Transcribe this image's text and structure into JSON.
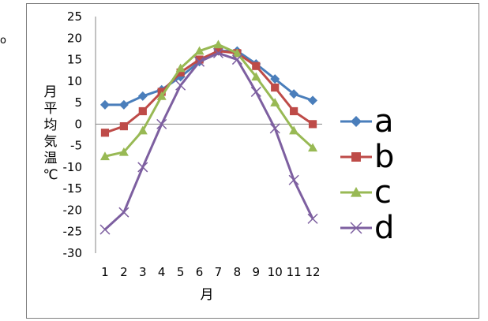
{
  "stray_text": "o",
  "chart_data": {
    "type": "line",
    "xlabel": "月",
    "ylabel": "月平均気温℃",
    "categories": [
      "1",
      "2",
      "3",
      "4",
      "5",
      "6",
      "7",
      "8",
      "9",
      "10",
      "11",
      "12"
    ],
    "ylim": [
      -30,
      25
    ],
    "y_ticks": [
      25,
      20,
      15,
      10,
      5,
      0,
      -5,
      -10,
      -15,
      -20,
      -25,
      -30
    ],
    "grid": false,
    "legend_position": "right",
    "series": [
      {
        "name": "a",
        "color": "#4a7ebb",
        "marker": "diamond",
        "values": [
          4.5,
          4.5,
          6.5,
          8,
          11,
          14.5,
          17,
          17,
          14,
          10.5,
          7,
          5.5
        ]
      },
      {
        "name": "b",
        "color": "#be4b48",
        "marker": "square",
        "values": [
          -2,
          -0.5,
          3,
          7.5,
          12,
          15,
          17,
          16.5,
          13.5,
          8.5,
          3,
          0
        ]
      },
      {
        "name": "c",
        "color": "#98b954",
        "marker": "triangle",
        "values": [
          -7.5,
          -6.5,
          -1.5,
          6.5,
          13,
          17,
          18.5,
          16.5,
          11,
          5,
          -1.5,
          -5.5
        ]
      },
      {
        "name": "d",
        "color": "#7d5fa0",
        "marker": "x",
        "values": [
          -24.5,
          -20.5,
          -10,
          0,
          9,
          14.5,
          16.5,
          15,
          7.5,
          -1,
          -13,
          -22
        ]
      }
    ]
  }
}
